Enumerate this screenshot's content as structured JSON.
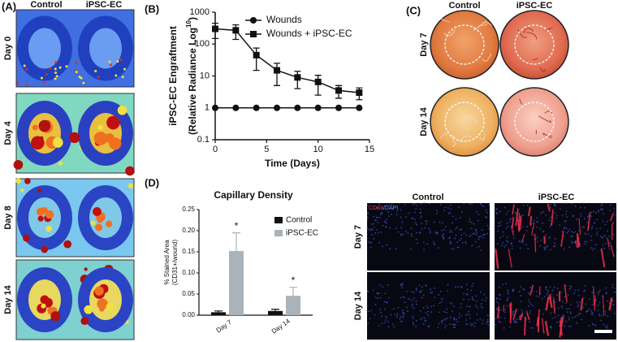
{
  "panels": {
    "a": {
      "label": "(A)",
      "columns": [
        "Control",
        "iPSC-EC"
      ],
      "rows": [
        "Day 0",
        "Day 4",
        "Day 8",
        "Day 14"
      ]
    },
    "b": {
      "label": "(B)"
    },
    "c": {
      "label": "(C)",
      "columns": [
        "Control",
        "iPSC-EC"
      ],
      "rows": [
        "Day 7",
        "Day 14"
      ]
    },
    "d": {
      "label": "(D)"
    },
    "e": {
      "columns": [
        "Control",
        "iPSC-EC"
      ],
      "rows": [
        "Day 7",
        "Day 14"
      ],
      "stain_label": [
        "CD31",
        "/DAPI"
      ]
    }
  },
  "chart_data": [
    {
      "type": "line",
      "log_y": true,
      "y_label_lines": [
        "iPSC-EC Engraftment",
        "(Relative Radiance Log"
      ],
      "y_label_sup": "10",
      "y_label_end": ")",
      "x_label": "Time (Days)",
      "x": [
        0,
        2,
        4,
        6,
        8,
        10,
        12,
        14
      ],
      "series": [
        {
          "name": "Wounds",
          "color": "#111111",
          "marker": "circle",
          "values": [
            1,
            1,
            1,
            1,
            1,
            1,
            1,
            1
          ]
        },
        {
          "name": "Wounds + iPSC-EC",
          "color": "#111111",
          "marker": "square",
          "values": [
            300,
            270,
            45,
            15,
            9,
            6.5,
            3.5,
            3
          ],
          "errors": [
            150,
            130,
            30,
            10,
            5,
            4,
            1.5,
            1.2
          ]
        }
      ],
      "xlim": [
        0,
        15
      ],
      "xticks": [
        0,
        5,
        10,
        15
      ],
      "ylim": [
        0.1,
        1000
      ],
      "yticks": [
        0.1,
        1,
        10,
        100,
        1000
      ],
      "legend": "top-right"
    },
    {
      "type": "bar",
      "title": "Capillary Density",
      "y_label_lines": [
        "% Stained Area",
        "(CD31+/wound)"
      ],
      "categories": [
        "Day 7",
        "Day 14"
      ],
      "series": [
        {
          "name": "Control",
          "color": "#111111",
          "values": [
            0.007,
            0.01
          ],
          "errors": [
            0.003,
            0.004
          ]
        },
        {
          "name": "iPSC-EC",
          "color": "#a9b3b9",
          "values": [
            0.152,
            0.046
          ],
          "errors": [
            0.043,
            0.02
          ]
        }
      ],
      "annotations": [
        "*",
        "*"
      ],
      "ylim": [
        0,
        0.25
      ],
      "yticks": [
        {
          "value": 0,
          "label": "0.00"
        },
        {
          "value": 0.05,
          "label": "0.05"
        },
        {
          "value": 0.1,
          "label": "0.10"
        },
        {
          "value": 0.15,
          "label": "0.15"
        },
        {
          "value": 0.2,
          "label": "0.20"
        },
        {
          "value": 0.25,
          "label": "0.25"
        }
      ],
      "legend": "top-right"
    }
  ]
}
